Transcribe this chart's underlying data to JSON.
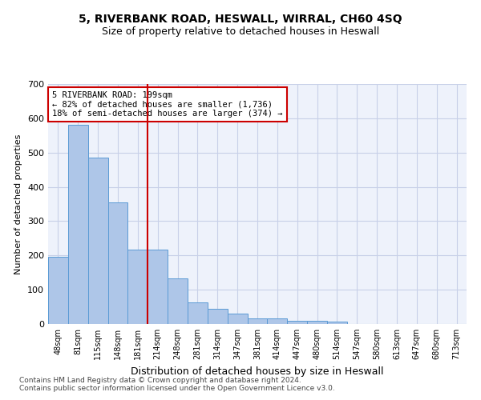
{
  "title": "5, RIVERBANK ROAD, HESWALL, WIRRAL, CH60 4SQ",
  "subtitle": "Size of property relative to detached houses in Heswall",
  "xlabel": "Distribution of detached houses by size in Heswall",
  "ylabel": "Number of detached properties",
  "footnote1": "Contains HM Land Registry data © Crown copyright and database right 2024.",
  "footnote2": "Contains public sector information licensed under the Open Government Licence v3.0.",
  "categories": [
    "48sqm",
    "81sqm",
    "115sqm",
    "148sqm",
    "181sqm",
    "214sqm",
    "248sqm",
    "281sqm",
    "314sqm",
    "347sqm",
    "381sqm",
    "414sqm",
    "447sqm",
    "480sqm",
    "514sqm",
    "547sqm",
    "580sqm",
    "613sqm",
    "647sqm",
    "680sqm",
    "713sqm"
  ],
  "values": [
    196,
    582,
    486,
    355,
    218,
    218,
    132,
    63,
    44,
    31,
    16,
    16,
    10,
    10,
    7,
    0,
    0,
    0,
    0,
    0,
    0
  ],
  "bar_color": "#aec6e8",
  "bar_edge_color": "#5b9bd5",
  "highlight_index": 5,
  "highlight_color": "#cc0000",
  "annotation_line0": "5 RIVERBANK ROAD: 199sqm",
  "annotation_line1": "← 82% of detached houses are smaller (1,736)",
  "annotation_line2": "18% of semi-detached houses are larger (374) →",
  "ylim": [
    0,
    700
  ],
  "yticks": [
    0,
    100,
    200,
    300,
    400,
    500,
    600,
    700
  ],
  "background_color": "#eef2fb",
  "grid_color": "#c8d0e8",
  "annotation_box_color": "#ffffff",
  "annotation_border_color": "#cc0000"
}
